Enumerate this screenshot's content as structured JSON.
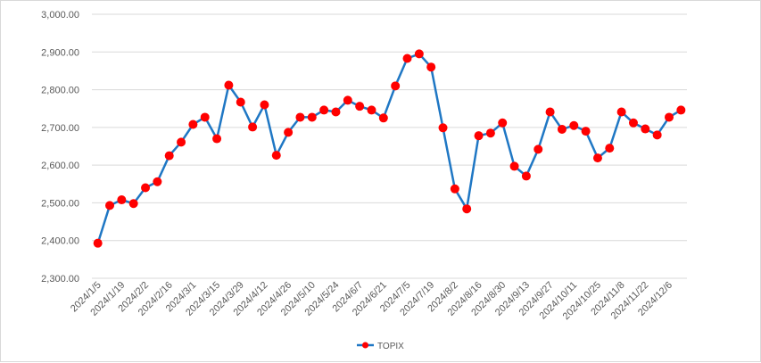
{
  "chart_data": {
    "type": "line",
    "title": "",
    "xlabel": "",
    "ylabel": "",
    "ylim": [
      2300,
      3000
    ],
    "y_ticks": [
      "2,300.00",
      "2,400.00",
      "2,500.00",
      "2,600.00",
      "2,700.00",
      "2,800.00",
      "2,900.00",
      "3,000.00"
    ],
    "y_tick_values": [
      2300,
      2400,
      2500,
      2600,
      2700,
      2800,
      2900,
      3000
    ],
    "x_tick_labels": [
      "2024/1/5",
      "2024/1/19",
      "2024/2/2",
      "2024/2/16",
      "2024/3/1",
      "2024/3/15",
      "2024/3/29",
      "2024/4/12",
      "2024/4/26",
      "2024/5/10",
      "2024/5/24",
      "2024/6/7",
      "2024/6/21",
      "2024/7/5",
      "2024/7/19",
      "2024/8/2",
      "2024/8/16",
      "2024/8/30",
      "2024/9/13",
      "2024/9/27",
      "2024/10/11",
      "2024/10/25",
      "2024/11/8",
      "2024/11/22",
      "2024/12/6"
    ],
    "x": [
      "2024/1/5",
      "2024/1/12",
      "2024/1/19",
      "2024/1/26",
      "2024/2/2",
      "2024/2/9",
      "2024/2/16",
      "2024/2/23",
      "2024/3/1",
      "2024/3/8",
      "2024/3/15",
      "2024/3/22",
      "2024/3/29",
      "2024/4/5",
      "2024/4/12",
      "2024/4/19",
      "2024/4/26",
      "2024/5/3",
      "2024/5/10",
      "2024/5/17",
      "2024/5/24",
      "2024/5/31",
      "2024/6/7",
      "2024/6/14",
      "2024/6/21",
      "2024/6/28",
      "2024/7/5",
      "2024/7/12",
      "2024/7/19",
      "2024/7/26",
      "2024/8/2",
      "2024/8/9",
      "2024/8/16",
      "2024/8/23",
      "2024/8/30",
      "2024/9/6",
      "2024/9/13",
      "2024/9/20",
      "2024/9/27",
      "2024/10/4",
      "2024/10/11",
      "2024/10/18",
      "2024/10/25",
      "2024/11/1",
      "2024/11/8",
      "2024/11/15",
      "2024/11/22",
      "2024/11/29",
      "2024/12/6",
      "2024/12/13"
    ],
    "series": [
      {
        "name": "TOPIX",
        "color": "#1f77c4",
        "marker_color": "#ff0000",
        "values": [
          2393,
          2493,
          2508,
          2498,
          2540,
          2556,
          2625,
          2661,
          2708,
          2727,
          2670,
          2812,
          2767,
          2701,
          2760,
          2626,
          2687,
          2727,
          2727,
          2746,
          2741,
          2772,
          2756,
          2746,
          2725,
          2810,
          2883,
          2895,
          2860,
          2699,
          2537,
          2484,
          2678,
          2685,
          2712,
          2597,
          2571,
          2642,
          2741,
          2695,
          2705,
          2690,
          2619,
          2645,
          2741,
          2712,
          2696,
          2680,
          2727,
          2746
        ]
      }
    ],
    "grid": true,
    "legend": "bottom-center"
  }
}
